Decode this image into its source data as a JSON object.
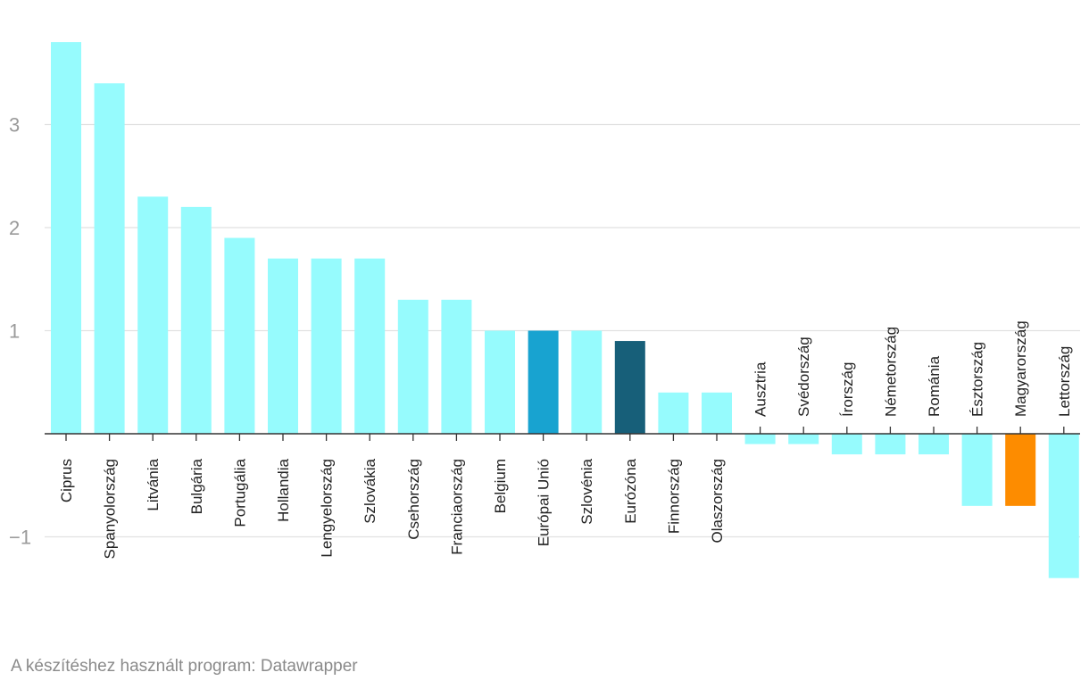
{
  "chart_data": {
    "type": "bar",
    "title": "",
    "xlabel": "",
    "ylabel": "",
    "ylim": [
      -1.5,
      3.9
    ],
    "yticks": [
      -1,
      1,
      2,
      3
    ],
    "grid": true,
    "categories": [
      "Ciprus",
      "Spanyolország",
      "Litvánia",
      "Bulgária",
      "Portugália",
      "Hollandia",
      "Lengyelország",
      "Szlovákia",
      "Csehország",
      "Franciaország",
      "Belgium",
      "Európai Unió",
      "Szlovénia",
      "Eurózóna",
      "Finnország",
      "Olaszország",
      "Ausztria",
      "Svédország",
      "Írország",
      "Németország",
      "Románia",
      "Észtország",
      "Magyarország",
      "Lettország"
    ],
    "values": [
      3.8,
      3.4,
      2.3,
      2.2,
      1.9,
      1.7,
      1.7,
      1.7,
      1.3,
      1.3,
      1.0,
      1.0,
      1.0,
      0.9,
      0.4,
      0.4,
      -0.1,
      -0.1,
      -0.2,
      -0.2,
      -0.2,
      -0.7,
      -0.7,
      -1.4
    ],
    "colors": [
      "#96fbfd",
      "#96fbfd",
      "#96fbfd",
      "#96fbfd",
      "#96fbfd",
      "#96fbfd",
      "#96fbfd",
      "#96fbfd",
      "#96fbfd",
      "#96fbfd",
      "#96fbfd",
      "#18a3d0",
      "#96fbfd",
      "#175f79",
      "#96fbfd",
      "#96fbfd",
      "#96fbfd",
      "#96fbfd",
      "#96fbfd",
      "#96fbfd",
      "#96fbfd",
      "#96fbfd",
      "#fd8c00",
      "#96fbfd"
    ]
  },
  "footer": {
    "text": "A készítéshez használt program: Datawrapper"
  },
  "colors": {
    "grid": "#e1e1e1",
    "axis": "#333333",
    "tick_label": "#9a9a9a",
    "category_label": "#222222"
  }
}
